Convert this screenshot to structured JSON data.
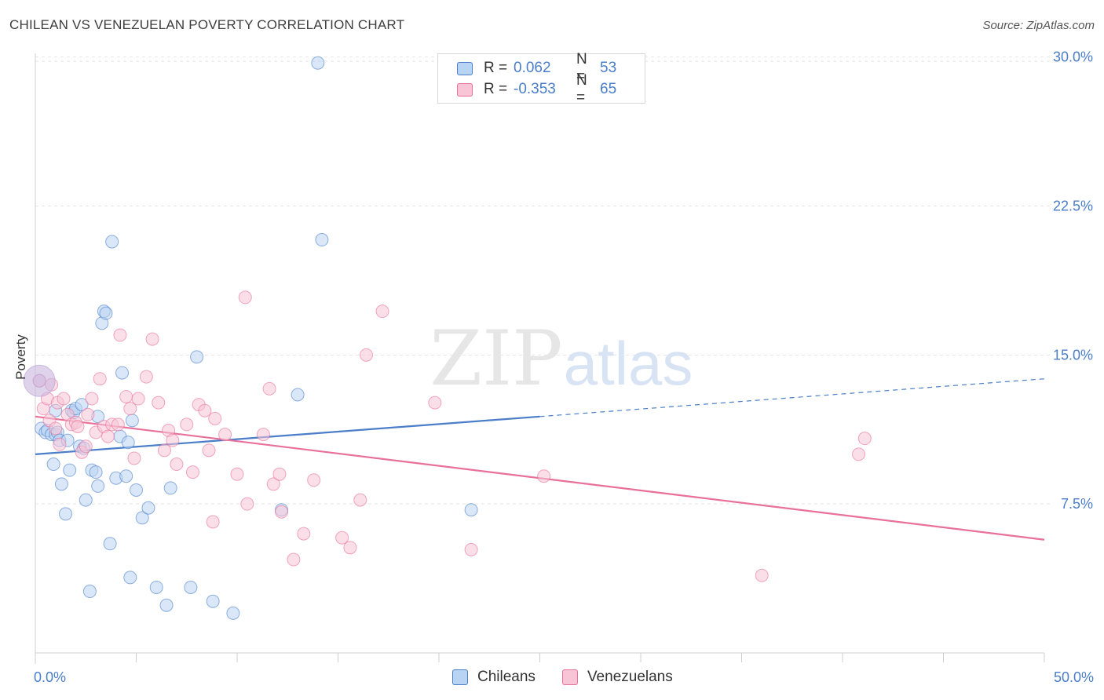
{
  "title": "CHILEAN VS VENEZUELAN POVERTY CORRELATION CHART",
  "source": "Source: ZipAtlas.com",
  "watermark": {
    "zip": "ZIP",
    "atlas": "atlas"
  },
  "legend": {
    "r_label": "R =",
    "n_label": "N =",
    "rows": [
      {
        "r": "0.062",
        "n": "53"
      },
      {
        "r": "-0.353",
        "n": "65"
      }
    ]
  },
  "colors": {
    "chileans": "#4a7ec9",
    "chileans_fill": "#b9d3f3",
    "venezuelans": "#e8709a",
    "venezuelans_fill": "#f7c5d5",
    "axis_text": "#4a7ec9"
  },
  "chart_data": {
    "type": "scatter",
    "title": "CHILEAN VS VENEZUELAN POVERTY CORRELATION CHART",
    "xlabel": "",
    "ylabel": "Poverty",
    "xlim": [
      0,
      50
    ],
    "ylim": [
      0,
      30.5
    ],
    "x_tick_labels": [
      "0.0%",
      "50.0%"
    ],
    "y_ticks": [
      7.5,
      15.0,
      22.5,
      30.0
    ],
    "y_tick_labels": [
      "7.5%",
      "15.0%",
      "22.5%",
      "30.0%"
    ],
    "grid": true,
    "legend_position": "top-center",
    "series": [
      {
        "name": "Chileans",
        "color": "#4a7ec9",
        "trend": {
          "x0": 0,
          "y0": 10.0,
          "x1": 25,
          "y1": 11.9,
          "dashed_to_x": 50,
          "dashed_to_y": 13.8
        },
        "points": [
          [
            0.3,
            11.3
          ],
          [
            0.5,
            11.1
          ],
          [
            0.6,
            11.2
          ],
          [
            0.8,
            11.0
          ],
          [
            0.9,
            9.5
          ],
          [
            1.0,
            11.0
          ],
          [
            1.1,
            11.1
          ],
          [
            1.2,
            10.7
          ],
          [
            1.3,
            8.5
          ],
          [
            1.5,
            7.0
          ],
          [
            1.6,
            10.7
          ],
          [
            1.7,
            9.2
          ],
          [
            1.8,
            12.2
          ],
          [
            1.9,
            12.1
          ],
          [
            2.0,
            12.3
          ],
          [
            2.2,
            10.4
          ],
          [
            2.3,
            12.5
          ],
          [
            2.4,
            10.3
          ],
          [
            2.5,
            7.7
          ],
          [
            2.7,
            3.1
          ],
          [
            2.8,
            9.2
          ],
          [
            3.0,
            9.1
          ],
          [
            3.1,
            11.9
          ],
          [
            3.1,
            8.4
          ],
          [
            3.3,
            16.6
          ],
          [
            3.4,
            17.2
          ],
          [
            3.5,
            17.1
          ],
          [
            3.7,
            5.5
          ],
          [
            3.8,
            20.7
          ],
          [
            4.0,
            8.8
          ],
          [
            4.2,
            10.9
          ],
          [
            4.3,
            14.1
          ],
          [
            4.5,
            8.9
          ],
          [
            4.6,
            10.6
          ],
          [
            4.7,
            3.8
          ],
          [
            4.8,
            11.7
          ],
          [
            5.0,
            8.2
          ],
          [
            5.3,
            6.8
          ],
          [
            5.6,
            7.3
          ],
          [
            6.0,
            3.3
          ],
          [
            6.5,
            2.4
          ],
          [
            6.7,
            8.3
          ],
          [
            7.7,
            3.3
          ],
          [
            8.0,
            14.9
          ],
          [
            8.8,
            2.6
          ],
          [
            9.8,
            2.0
          ],
          [
            12.2,
            7.2
          ],
          [
            13.0,
            13.0
          ],
          [
            14.0,
            29.7
          ],
          [
            14.2,
            20.8
          ],
          [
            21.6,
            7.2
          ],
          [
            0.2,
            13.7
          ],
          [
            1.0,
            12.2
          ]
        ]
      },
      {
        "name": "Venezuelans",
        "color": "#e8709a",
        "trend": {
          "x0": 0,
          "y0": 11.9,
          "x1": 50,
          "y1": 5.7
        },
        "points": [
          [
            0.2,
            13.7
          ],
          [
            0.4,
            12.3
          ],
          [
            0.6,
            12.8
          ],
          [
            0.7,
            11.7
          ],
          [
            0.8,
            13.5
          ],
          [
            1.0,
            11.3
          ],
          [
            1.1,
            12.6
          ],
          [
            1.2,
            10.5
          ],
          [
            1.4,
            12.8
          ],
          [
            1.6,
            12.0
          ],
          [
            1.8,
            11.5
          ],
          [
            2.0,
            11.6
          ],
          [
            2.1,
            11.4
          ],
          [
            2.3,
            10.1
          ],
          [
            2.5,
            10.4
          ],
          [
            2.6,
            12.0
          ],
          [
            2.8,
            12.8
          ],
          [
            3.0,
            11.1
          ],
          [
            3.2,
            13.8
          ],
          [
            3.4,
            11.4
          ],
          [
            3.6,
            10.9
          ],
          [
            3.8,
            11.5
          ],
          [
            4.1,
            11.5
          ],
          [
            4.2,
            16.0
          ],
          [
            4.5,
            12.9
          ],
          [
            4.7,
            12.3
          ],
          [
            4.9,
            9.8
          ],
          [
            5.1,
            12.8
          ],
          [
            5.5,
            13.9
          ],
          [
            5.8,
            15.8
          ],
          [
            6.1,
            12.6
          ],
          [
            6.4,
            10.2
          ],
          [
            6.6,
            11.2
          ],
          [
            6.8,
            10.7
          ],
          [
            7.0,
            9.5
          ],
          [
            7.5,
            11.5
          ],
          [
            7.8,
            9.1
          ],
          [
            8.1,
            12.5
          ],
          [
            8.4,
            12.2
          ],
          [
            8.6,
            10.2
          ],
          [
            8.8,
            6.6
          ],
          [
            8.9,
            11.8
          ],
          [
            9.4,
            11.0
          ],
          [
            10.0,
            9.0
          ],
          [
            10.4,
            17.9
          ],
          [
            10.5,
            7.5
          ],
          [
            11.3,
            11.0
          ],
          [
            11.6,
            13.3
          ],
          [
            11.8,
            8.5
          ],
          [
            12.1,
            9.0
          ],
          [
            12.2,
            7.1
          ],
          [
            12.8,
            4.7
          ],
          [
            13.3,
            6.0
          ],
          [
            13.8,
            8.7
          ],
          [
            15.2,
            5.8
          ],
          [
            15.6,
            5.3
          ],
          [
            16.1,
            7.7
          ],
          [
            16.4,
            15.0
          ],
          [
            17.2,
            17.2
          ],
          [
            19.8,
            12.6
          ],
          [
            21.6,
            5.2
          ],
          [
            25.2,
            8.9
          ],
          [
            36.0,
            3.9
          ],
          [
            40.8,
            10.0
          ],
          [
            41.1,
            10.8
          ]
        ]
      }
    ]
  },
  "bottom_legend": [
    "Chileans",
    "Venezuelans"
  ]
}
